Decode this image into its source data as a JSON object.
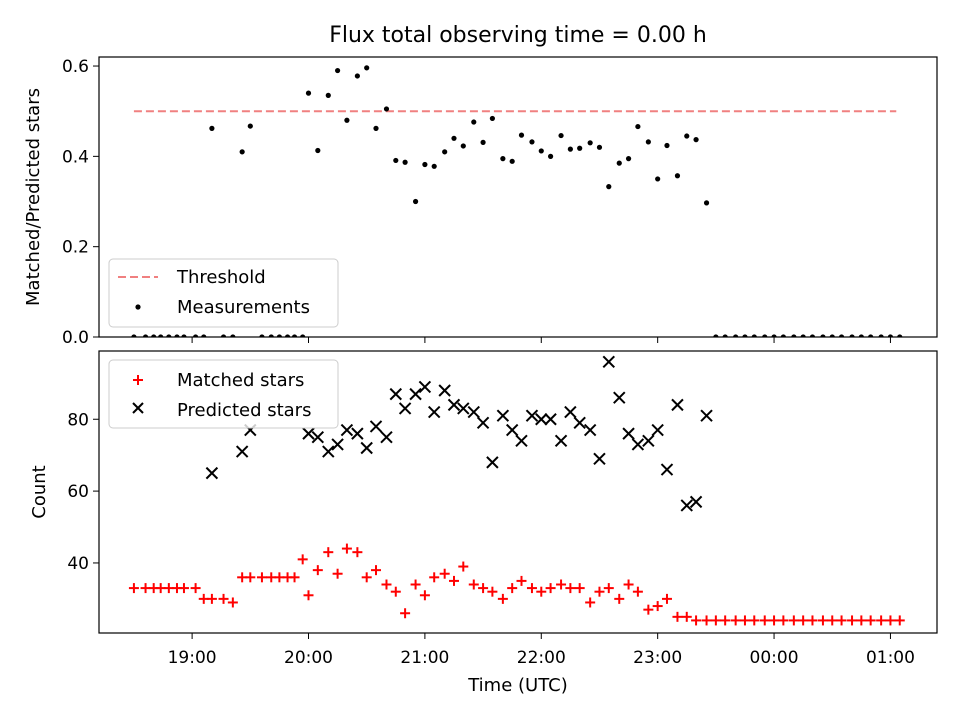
{
  "title": "Flux total observing time = 0.00 h",
  "chart_data": [
    {
      "type": "scatter",
      "ylabel": "Matched/Predicted stars",
      "ylim": [
        0,
        0.62
      ],
      "yticks": [
        0,
        0.2,
        0.4,
        0.6
      ],
      "ytick_labels": [
        "0.0",
        "0.2",
        "0.4",
        "0.6"
      ],
      "xlim": [
        18.2,
        25.4
      ],
      "xticks": [
        19,
        20,
        21,
        22,
        23,
        24,
        25
      ],
      "legend_position": "lower-left",
      "threshold": {
        "name": "Threshold",
        "value": 0.5,
        "x_range": [
          18.5,
          25.05
        ],
        "color": "#f08080"
      },
      "measurements": {
        "name": "Measurements",
        "color": "#000000",
        "x": [
          18.5,
          18.6,
          18.67,
          18.73,
          18.8,
          18.87,
          18.93,
          19.03,
          19.1,
          19.17,
          19.27,
          19.35,
          19.43,
          19.5,
          19.6,
          19.68,
          19.75,
          19.82,
          19.88,
          19.95,
          20.0,
          20.08,
          20.17,
          20.25,
          20.33,
          20.42,
          20.5,
          20.58,
          20.67,
          20.75,
          20.83,
          20.92,
          21.0,
          21.08,
          21.17,
          21.25,
          21.33,
          21.42,
          21.5,
          21.58,
          21.67,
          21.75,
          21.83,
          21.92,
          22.0,
          22.08,
          22.17,
          22.25,
          22.33,
          22.42,
          22.5,
          22.58,
          22.67,
          22.75,
          22.83,
          22.92,
          23.0,
          23.08,
          23.17,
          23.25,
          23.33,
          23.42,
          23.5,
          23.58,
          23.67,
          23.75,
          23.83,
          23.92,
          24.0,
          24.08,
          24.17,
          24.25,
          24.33,
          24.42,
          24.5,
          24.58,
          24.67,
          24.75,
          24.83,
          24.92,
          25.0,
          25.08
        ],
        "y": [
          0.0,
          0.0,
          0.0,
          0.0,
          0.0,
          0.0,
          0.0,
          0.0,
          0.0,
          0.462,
          0.0,
          0.0,
          0.41,
          0.467,
          0.0,
          0.0,
          0.0,
          0.0,
          0.0,
          0.0,
          0.54,
          0.413,
          0.535,
          0.59,
          0.48,
          0.578,
          0.596,
          0.462,
          0.505,
          0.391,
          0.387,
          0.3,
          0.382,
          0.378,
          0.41,
          0.44,
          0.423,
          0.476,
          0.431,
          0.484,
          0.395,
          0.389,
          0.447,
          0.432,
          0.412,
          0.4,
          0.446,
          0.416,
          0.418,
          0.43,
          0.42,
          0.333,
          0.385,
          0.395,
          0.466,
          0.432,
          0.35,
          0.424,
          0.357,
          0.445,
          0.437,
          0.297,
          0.0,
          0.0,
          0.0,
          0.0,
          0.0,
          0.0,
          0.0,
          0.0,
          0.0,
          0.0,
          0.0,
          0.0,
          0.0,
          0.0,
          0.0,
          0.0,
          0.0,
          0.0,
          0.0,
          0.0
        ]
      }
    },
    {
      "type": "scatter",
      "xlabel": "Time (UTC)",
      "ylabel": "Count",
      "ylim": [
        20.5,
        99
      ],
      "yticks": [
        40,
        60,
        80
      ],
      "ytick_labels": [
        "40",
        "60",
        "80"
      ],
      "xlim": [
        18.2,
        25.4
      ],
      "xticks": [
        19,
        20,
        21,
        22,
        23,
        24,
        25
      ],
      "xtick_labels": [
        "19:00",
        "20:00",
        "21:00",
        "22:00",
        "23:00",
        "00:00",
        "01:00"
      ],
      "legend_position": "upper-left",
      "series": [
        {
          "name": "Matched stars",
          "marker": "plus",
          "color": "#ff0000",
          "x": [
            18.5,
            18.6,
            18.67,
            18.73,
            18.8,
            18.87,
            18.93,
            19.03,
            19.1,
            19.17,
            19.27,
            19.35,
            19.43,
            19.5,
            19.6,
            19.68,
            19.75,
            19.82,
            19.88,
            19.95,
            20.0,
            20.08,
            20.17,
            20.25,
            20.33,
            20.42,
            20.5,
            20.58,
            20.67,
            20.75,
            20.83,
            20.92,
            21.0,
            21.08,
            21.17,
            21.25,
            21.33,
            21.42,
            21.5,
            21.58,
            21.67,
            21.75,
            21.83,
            21.92,
            22.0,
            22.08,
            22.17,
            22.25,
            22.33,
            22.42,
            22.5,
            22.58,
            22.67,
            22.75,
            22.83,
            22.92,
            23.0,
            23.08,
            23.17,
            23.25,
            23.33,
            23.42,
            23.5,
            23.58,
            23.67,
            23.75,
            23.83,
            23.92,
            24.0,
            24.08,
            24.17,
            24.25,
            24.33,
            24.42,
            24.5,
            24.58,
            24.67,
            24.75,
            24.83,
            24.92,
            25.0,
            25.08
          ],
          "y": [
            33,
            33,
            33,
            33,
            33,
            33,
            33,
            33,
            30,
            30,
            30,
            29,
            36,
            36,
            36,
            36,
            36,
            36,
            36,
            41,
            31,
            38,
            43,
            37,
            44,
            43,
            36,
            38,
            34,
            32,
            26,
            34,
            31,
            36,
            37,
            35,
            39,
            34,
            33,
            32,
            30,
            33,
            35,
            33,
            32,
            33,
            34,
            33,
            33,
            29,
            32,
            33,
            30,
            34,
            32,
            27,
            28,
            30,
            25,
            25,
            24,
            24,
            24,
            24,
            24,
            24,
            24,
            24,
            24,
            24,
            24,
            24,
            24,
            24,
            24,
            24,
            24,
            24,
            24,
            24,
            24,
            24
          ]
        },
        {
          "name": "Predicted stars",
          "marker": "x",
          "color": "#000000",
          "x": [
            19.17,
            19.43,
            19.5,
            20.0,
            20.08,
            20.17,
            20.25,
            20.33,
            20.42,
            20.5,
            20.58,
            20.67,
            20.75,
            20.83,
            20.92,
            21.0,
            21.08,
            21.17,
            21.25,
            21.33,
            21.42,
            21.5,
            21.58,
            21.67,
            21.75,
            21.83,
            21.92,
            22.0,
            22.08,
            22.17,
            22.25,
            22.33,
            22.42,
            22.5,
            22.58,
            22.67,
            22.75,
            22.83,
            22.92,
            23.0,
            23.08,
            23.17,
            23.25,
            23.33,
            23.42
          ],
          "y": [
            65,
            71,
            77,
            76,
            75,
            71,
            73,
            77,
            76,
            72,
            78,
            75,
            87,
            83,
            87,
            89,
            82,
            88,
            84,
            83,
            82,
            79,
            68,
            81,
            77,
            74,
            81,
            80,
            80,
            74,
            82,
            79,
            77,
            69,
            96,
            86,
            76,
            73,
            74,
            77,
            66,
            84,
            56,
            57,
            81
          ]
        }
      ]
    }
  ]
}
